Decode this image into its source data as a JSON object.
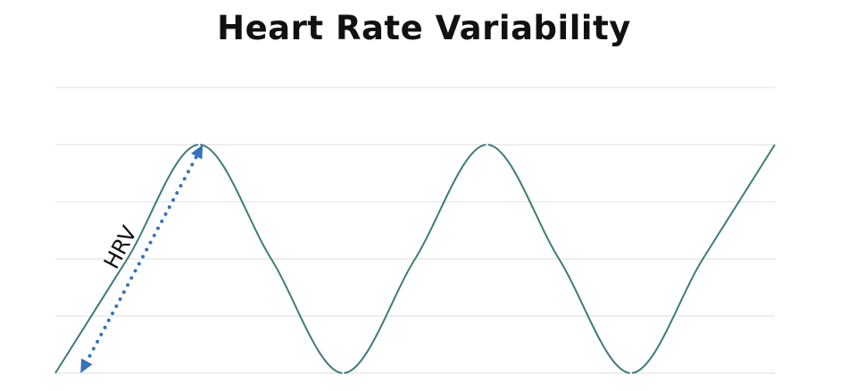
{
  "chart_data": {
    "type": "line",
    "title": "Heart Rate Variability",
    "xlabel": "",
    "ylabel": "",
    "x": [
      0,
      1,
      2,
      3,
      4,
      5,
      6,
      7,
      8,
      9,
      10
    ],
    "values": [
      0,
      0.5,
      1,
      0.5,
      0,
      0.5,
      1,
      0.5,
      0,
      0.5,
      1
    ],
    "xlim": [
      0,
      10
    ],
    "ylim": [
      0,
      1.25
    ],
    "grid": true,
    "legend": "none",
    "colors": {
      "line": "#3f7c78",
      "grid": "#dcdcdc",
      "arrow": "#3572b8"
    },
    "annotations": [
      {
        "text": "HRV",
        "type": "double-arrow"
      }
    ]
  }
}
